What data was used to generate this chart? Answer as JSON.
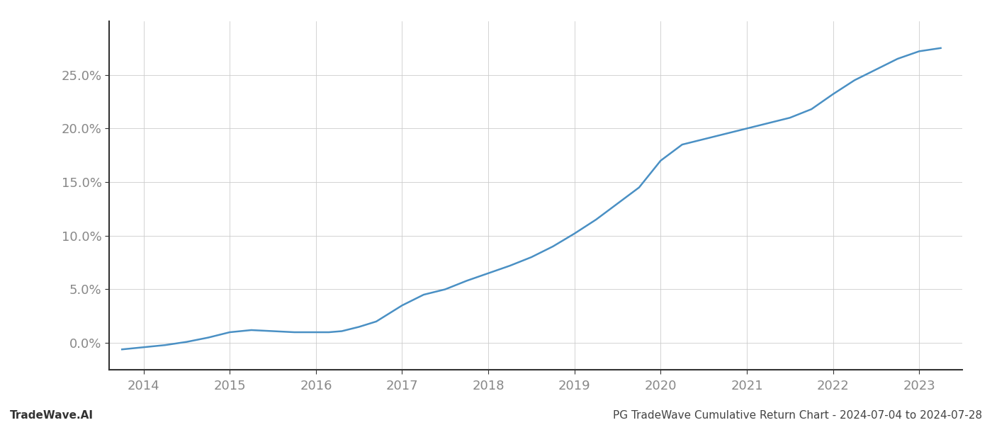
{
  "title": "PG TradeWave Cumulative Return Chart - 2024-07-04 to 2024-07-28",
  "watermark": "TradeWave.AI",
  "line_color": "#4a90c4",
  "background_color": "#ffffff",
  "grid_color": "#cccccc",
  "x_years": [
    2014,
    2015,
    2016,
    2017,
    2018,
    2019,
    2020,
    2021,
    2022,
    2023
  ],
  "x_data": [
    2013.75,
    2014.0,
    2014.25,
    2014.5,
    2014.75,
    2015.0,
    2015.25,
    2015.5,
    2015.75,
    2016.0,
    2016.15,
    2016.3,
    2016.5,
    2016.7,
    2017.0,
    2017.25,
    2017.5,
    2017.75,
    2018.0,
    2018.25,
    2018.5,
    2018.75,
    2019.0,
    2019.25,
    2019.5,
    2019.75,
    2020.0,
    2020.25,
    2020.5,
    2020.75,
    2021.0,
    2021.25,
    2021.5,
    2021.75,
    2022.0,
    2022.25,
    2022.5,
    2022.75,
    2023.0,
    2023.25
  ],
  "y_data": [
    -0.6,
    -0.4,
    -0.2,
    0.1,
    0.5,
    1.0,
    1.2,
    1.1,
    1.0,
    1.0,
    1.0,
    1.1,
    1.5,
    2.0,
    3.5,
    4.5,
    5.0,
    5.8,
    6.5,
    7.2,
    8.0,
    9.0,
    10.2,
    11.5,
    13.0,
    14.5,
    17.0,
    18.5,
    19.0,
    19.5,
    20.0,
    20.5,
    21.0,
    21.8,
    23.2,
    24.5,
    25.5,
    26.5,
    27.2,
    27.5
  ],
  "yticks": [
    0.0,
    5.0,
    10.0,
    15.0,
    20.0,
    25.0
  ],
  "ylim": [
    -2.5,
    30.0
  ],
  "xlim": [
    2013.6,
    2023.5
  ],
  "title_fontsize": 11,
  "watermark_fontsize": 11,
  "axis_label_fontsize": 13,
  "tick_label_color": "#888888",
  "title_color": "#444444",
  "watermark_color": "#333333",
  "spine_color": "#333333"
}
